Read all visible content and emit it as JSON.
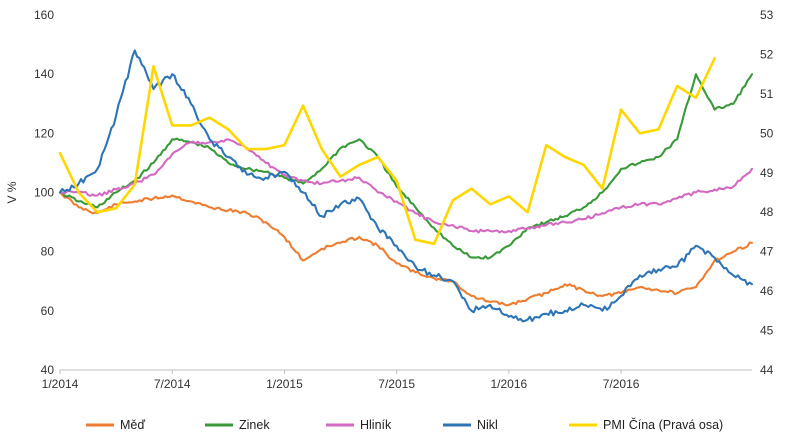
{
  "chart_data": {
    "type": "line",
    "ylabel": "V %",
    "xlim": [
      "2014-01",
      "2017-02"
    ],
    "ylim": [
      40,
      160
    ],
    "y2lim": [
      44,
      53
    ],
    "x_ticks": [
      "1/2014",
      "7/2014",
      "1/2015",
      "7/2015",
      "1/2016",
      "7/2016"
    ],
    "y_ticks": [
      "40",
      "60",
      "80",
      "100",
      "120",
      "140",
      "160"
    ],
    "y2_ticks": [
      "44",
      "45",
      "46",
      "47",
      "48",
      "49",
      "50",
      "51",
      "52",
      "53"
    ],
    "grid": false,
    "legend_position": "bottom",
    "series": [
      {
        "name": "Měď",
        "color": "#ED7D31",
        "axis": "left",
        "x": [
          "2014-01",
          "2014-02",
          "2014-03",
          "2014-04",
          "2014-05",
          "2014-06",
          "2014-07",
          "2014-08",
          "2014-09",
          "2014-10",
          "2014-11",
          "2014-12",
          "2015-01",
          "2015-02",
          "2015-03",
          "2015-04",
          "2015-05",
          "2015-06",
          "2015-07",
          "2015-08",
          "2015-09",
          "2015-10",
          "2015-11",
          "2015-12",
          "2016-01",
          "2016-02",
          "2016-03",
          "2016-04",
          "2016-05",
          "2016-06",
          "2016-07",
          "2016-08",
          "2016-09",
          "2016-10",
          "2016-11",
          "2016-12",
          "2017-01",
          "2017-02"
        ],
        "values": [
          100,
          95,
          93,
          96,
          97,
          98,
          99,
          97,
          95,
          94,
          93,
          90,
          85,
          77,
          81,
          83,
          85,
          82,
          76,
          73,
          71,
          70,
          65,
          63,
          62,
          64,
          66,
          69,
          67,
          65,
          66,
          68,
          67,
          66,
          68,
          77,
          80,
          83
        ]
      },
      {
        "name": "Zinek",
        "color": "#3A9A3A",
        "axis": "left",
        "x": [
          "2014-01",
          "2014-02",
          "2014-03",
          "2014-04",
          "2014-05",
          "2014-06",
          "2014-07",
          "2014-08",
          "2014-09",
          "2014-10",
          "2014-11",
          "2014-12",
          "2015-01",
          "2015-02",
          "2015-03",
          "2015-04",
          "2015-05",
          "2015-06",
          "2015-07",
          "2015-08",
          "2015-09",
          "2015-10",
          "2015-11",
          "2015-12",
          "2016-01",
          "2016-02",
          "2016-03",
          "2016-04",
          "2016-05",
          "2016-06",
          "2016-07",
          "2016-08",
          "2016-09",
          "2016-10",
          "2016-11",
          "2016-12",
          "2017-01",
          "2017-02"
        ],
        "values": [
          100,
          97,
          95,
          100,
          104,
          110,
          118,
          117,
          115,
          110,
          108,
          107,
          105,
          103,
          108,
          115,
          118,
          112,
          102,
          95,
          88,
          82,
          78,
          78,
          82,
          88,
          90,
          92,
          95,
          100,
          108,
          110,
          112,
          118,
          140,
          128,
          130,
          140
        ]
      },
      {
        "name": "Hliník",
        "color": "#D36AC2",
        "axis": "left",
        "x": [
          "2014-01",
          "2014-02",
          "2014-03",
          "2014-04",
          "2014-05",
          "2014-06",
          "2014-07",
          "2014-08",
          "2014-09",
          "2014-10",
          "2014-11",
          "2014-12",
          "2015-01",
          "2015-02",
          "2015-03",
          "2015-04",
          "2015-05",
          "2015-06",
          "2015-07",
          "2015-08",
          "2015-09",
          "2015-10",
          "2015-11",
          "2015-12",
          "2016-01",
          "2016-02",
          "2016-03",
          "2016-04",
          "2016-05",
          "2016-06",
          "2016-07",
          "2016-08",
          "2016-09",
          "2016-10",
          "2016-11",
          "2016-12",
          "2017-01",
          "2017-02"
        ],
        "values": [
          100,
          100,
          99,
          101,
          103,
          106,
          113,
          117,
          117,
          118,
          115,
          110,
          106,
          104,
          103,
          104,
          105,
          100,
          97,
          93,
          90,
          89,
          87,
          87,
          87,
          88,
          89,
          90,
          91,
          93,
          95,
          96,
          96,
          98,
          100,
          101,
          102,
          108
        ]
      },
      {
        "name": "Nikl",
        "color": "#2E75B6",
        "axis": "left",
        "x": [
          "2014-01",
          "2014-02",
          "2014-03",
          "2014-04",
          "2014-05",
          "2014-06",
          "2014-07",
          "2014-08",
          "2014-09",
          "2014-10",
          "2014-11",
          "2014-12",
          "2015-01",
          "2015-02",
          "2015-03",
          "2015-04",
          "2015-05",
          "2015-06",
          "2015-07",
          "2015-08",
          "2015-09",
          "2015-10",
          "2015-11",
          "2015-12",
          "2016-01",
          "2016-02",
          "2016-03",
          "2016-04",
          "2016-05",
          "2016-06",
          "2016-07",
          "2016-08",
          "2016-09",
          "2016-10",
          "2016-11",
          "2016-12",
          "2017-01",
          "2017-02"
        ],
        "values": [
          100,
          103,
          108,
          126,
          148,
          135,
          140,
          130,
          118,
          112,
          106,
          105,
          107,
          100,
          92,
          96,
          98,
          88,
          82,
          75,
          72,
          70,
          60,
          62,
          58,
          57,
          59,
          60,
          62,
          60,
          65,
          72,
          74,
          75,
          82,
          78,
          72,
          69
        ]
      },
      {
        "name": "PMI Čína (Pravá osa)",
        "color": "#FFD700",
        "axis": "right",
        "x": [
          "2014-01",
          "2014-02",
          "2014-03",
          "2014-04",
          "2014-05",
          "2014-06",
          "2014-07",
          "2014-08",
          "2014-09",
          "2014-10",
          "2014-11",
          "2014-12",
          "2015-01",
          "2015-02",
          "2015-03",
          "2015-04",
          "2015-05",
          "2015-06",
          "2015-07",
          "2015-08",
          "2015-09",
          "2015-10",
          "2015-11",
          "2015-12",
          "2016-01",
          "2016-02",
          "2016-03",
          "2016-04",
          "2016-05",
          "2016-06",
          "2016-07",
          "2016-08",
          "2016-09",
          "2016-10",
          "2016-11",
          "2016-12",
          "2017-01",
          "2017-02"
        ],
        "values": [
          49.5,
          48.5,
          48.0,
          48.1,
          48.7,
          51.7,
          50.2,
          50.2,
          50.4,
          50.1,
          49.6,
          49.6,
          49.7,
          50.7,
          49.6,
          48.9,
          49.2,
          49.4,
          48.8,
          47.3,
          47.2,
          48.3,
          48.6,
          48.2,
          48.4,
          48.0,
          49.7,
          49.4,
          49.2,
          48.6,
          50.6,
          50.0,
          50.1,
          51.2,
          50.9,
          51.9,
          null,
          null
        ]
      }
    ]
  }
}
